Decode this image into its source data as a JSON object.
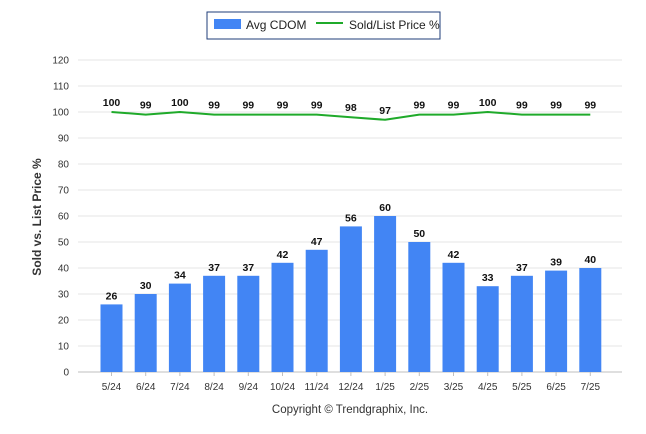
{
  "chart_data": {
    "type": "bar",
    "categories": [
      "5/24",
      "6/24",
      "7/24",
      "8/24",
      "9/24",
      "10/24",
      "11/24",
      "12/24",
      "1/25",
      "2/25",
      "3/25",
      "4/25",
      "5/25",
      "6/25",
      "7/25"
    ],
    "series": [
      {
        "name": "Avg CDOM",
        "type": "bar",
        "color": "#4285f4",
        "values": [
          26,
          30,
          34,
          37,
          37,
          42,
          47,
          56,
          60,
          50,
          42,
          33,
          37,
          39,
          40
        ]
      },
      {
        "name": "Sold/List Price %",
        "type": "line",
        "color": "#1faa2a",
        "values": [
          100,
          99,
          100,
          99,
          99,
          99,
          99,
          98,
          97,
          99,
          99,
          100,
          99,
          99,
          99
        ]
      }
    ],
    "title": "",
    "xlabel": "",
    "ylabel": "Sold vs. List Price %",
    "ylim": [
      0,
      120
    ],
    "yticks": [
      0,
      10,
      20,
      30,
      40,
      50,
      60,
      70,
      80,
      90,
      100,
      110,
      120
    ],
    "grid": true,
    "legend_position": "top-center"
  },
  "copyright": "Copyright © Trendgraphix, Inc."
}
